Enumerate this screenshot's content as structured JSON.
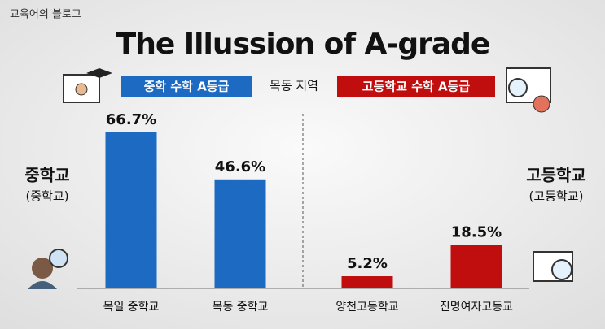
{
  "blog_name": "교육어의 블로그",
  "chart_data": {
    "type": "bar",
    "title": "The Illussion of A-grade",
    "subtitle": "목동 지역",
    "categories": [
      "목일 중학교",
      "목동 중학교",
      "양천고등학교",
      "진명여자고등교"
    ],
    "series": [
      {
        "name": "중학 수학 A등급",
        "color": "#1c6ac2",
        "values": [
          66.7,
          46.6,
          null,
          null
        ],
        "value_labels": [
          "66.7%",
          "46.6%",
          null,
          null
        ]
      },
      {
        "name": "고등학교 수학 A등급",
        "color": "#c00d0d",
        "values": [
          null,
          null,
          5.2,
          18.5
        ],
        "value_labels": [
          null,
          null,
          "5.2%",
          "18.5%"
        ]
      }
    ],
    "ylim": [
      0,
      75
    ],
    "annotations": [
      "중학교",
      "(중학교)",
      "고등학교",
      "(고등학교)"
    ]
  }
}
